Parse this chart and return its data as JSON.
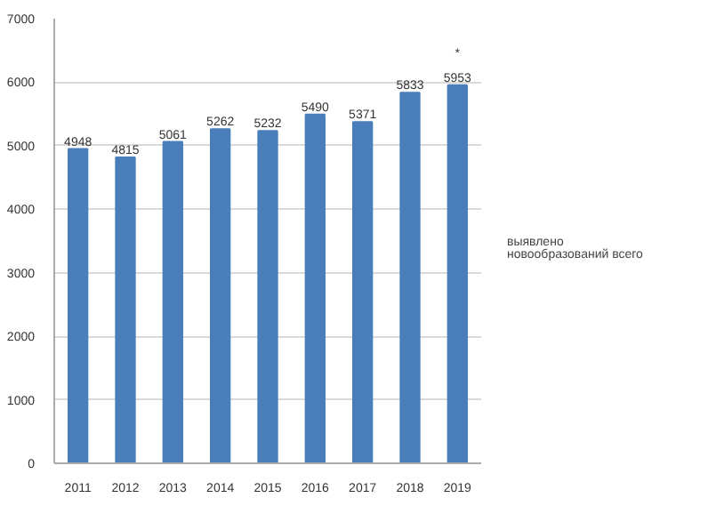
{
  "chart_data": {
    "type": "bar",
    "categories": [
      "2011",
      "2012",
      "2013",
      "2014",
      "2015",
      "2016",
      "2017",
      "2018",
      "2019"
    ],
    "series": [
      {
        "name": "выявлено новообразований всего",
        "color": "#4a7ebb",
        "values": [
          4948,
          4815,
          5061,
          5262,
          5232,
          5490,
          5371,
          5833,
          5953
        ]
      }
    ],
    "ylim": [
      0,
      7000
    ],
    "yticks": [
      0,
      1000,
      2000,
      3000,
      4000,
      5000,
      6000,
      7000
    ],
    "grid": "y",
    "legend": "right",
    "data_labels": true,
    "annotations": [
      "*"
    ]
  }
}
